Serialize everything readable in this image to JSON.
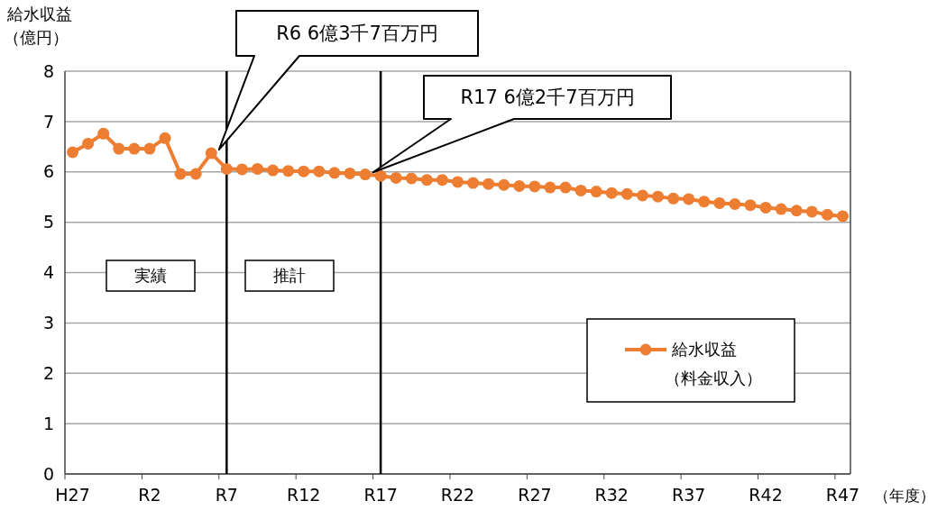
{
  "chart_data": {
    "type": "line",
    "categories": [
      "H27",
      null,
      null,
      null,
      null,
      "R2",
      null,
      null,
      null,
      null,
      "R7",
      null,
      null,
      null,
      null,
      "R12",
      null,
      null,
      null,
      null,
      "R17",
      null,
      null,
      null,
      null,
      "R22",
      null,
      null,
      null,
      null,
      "R27",
      null,
      null,
      null,
      null,
      "R32",
      null,
      null,
      null,
      null,
      "R37",
      null,
      null,
      null,
      null,
      "R42",
      null,
      null,
      null,
      null,
      "R47"
    ],
    "series": [
      {
        "name": "給水収益（料金収入）",
        "color": "#ed7d31",
        "values": [
          6.39,
          6.56,
          6.76,
          6.46,
          6.46,
          6.46,
          6.67,
          5.96,
          5.96,
          6.37,
          6.06,
          6.05,
          6.06,
          6.03,
          6.02,
          6.01,
          6.01,
          5.98,
          5.97,
          5.95,
          5.92,
          5.88,
          5.87,
          5.84,
          5.84,
          5.8,
          5.78,
          5.76,
          5.74,
          5.72,
          5.71,
          5.69,
          5.69,
          5.63,
          5.61,
          5.58,
          5.56,
          5.53,
          5.51,
          5.47,
          5.46,
          5.41,
          5.38,
          5.36,
          5.34,
          5.29,
          5.26,
          5.23,
          5.21,
          5.15,
          5.12
        ]
      }
    ],
    "ylabel": "給水収益（億円）",
    "xlabel": "（年度）",
    "ylim": [
      0,
      8
    ],
    "yticks": [
      0,
      1,
      2,
      3,
      4,
      5,
      6,
      7,
      8
    ],
    "grid": "y",
    "legend": "bottom right",
    "marker": "circle",
    "line_style": "solid",
    "ref_lines": [
      {
        "axis": "x",
        "value": "R7",
        "color": "#000000"
      },
      {
        "axis": "x",
        "value": "R17",
        "color": "#000000"
      }
    ],
    "annotations": [
      "R6 6億3千7百万円",
      "R17 6億2千7百万円",
      "実績",
      "推計"
    ]
  }
}
